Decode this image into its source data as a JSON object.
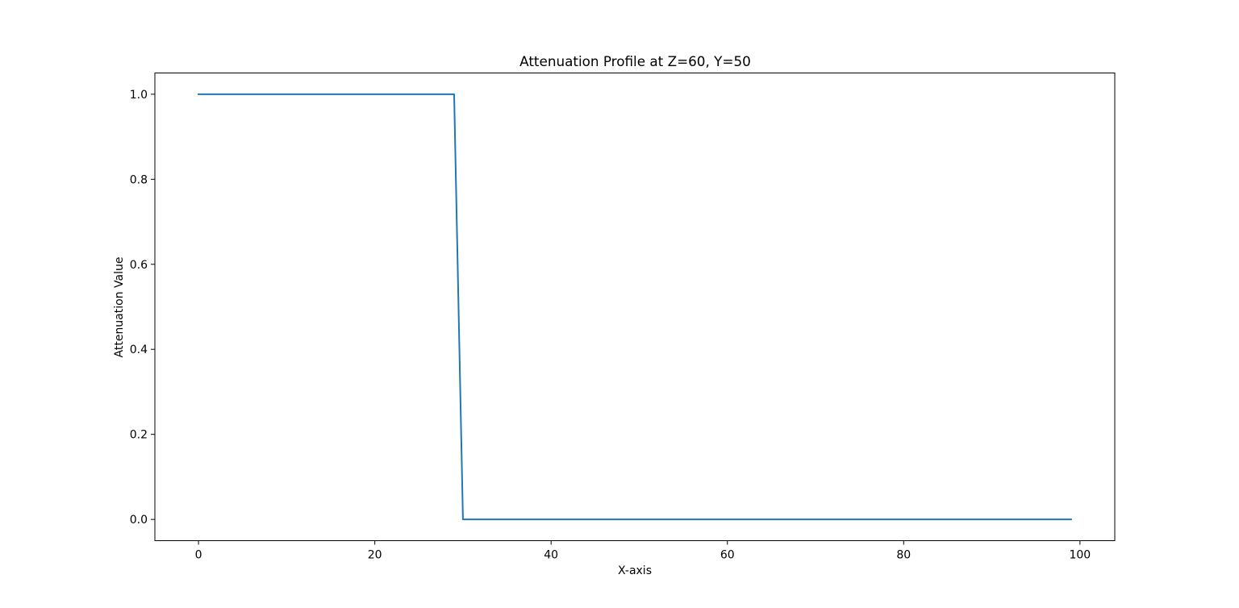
{
  "chart_data": {
    "type": "line",
    "title": "Attenuation Profile at Z=60, Y=50",
    "xlabel": "X-axis",
    "ylabel": "Attenuation Value",
    "xlim": [
      -4.95,
      103.95
    ],
    "ylim": [
      -0.05,
      1.05
    ],
    "xticks": [
      0,
      20,
      40,
      60,
      80,
      100
    ],
    "xtick_labels": [
      "0",
      "20",
      "40",
      "60",
      "80",
      "100"
    ],
    "yticks": [
      0.0,
      0.2,
      0.4,
      0.6,
      0.8,
      1.0
    ],
    "ytick_labels": [
      "0.0",
      "0.2",
      "0.4",
      "0.6",
      "0.8",
      "1.0"
    ],
    "grid": false,
    "legend": "none",
    "series": [
      {
        "color": "#1f77b4",
        "x": [
          0,
          29,
          30,
          99
        ],
        "y": [
          1.0,
          1.0,
          0.0,
          0.0
        ]
      }
    ]
  }
}
